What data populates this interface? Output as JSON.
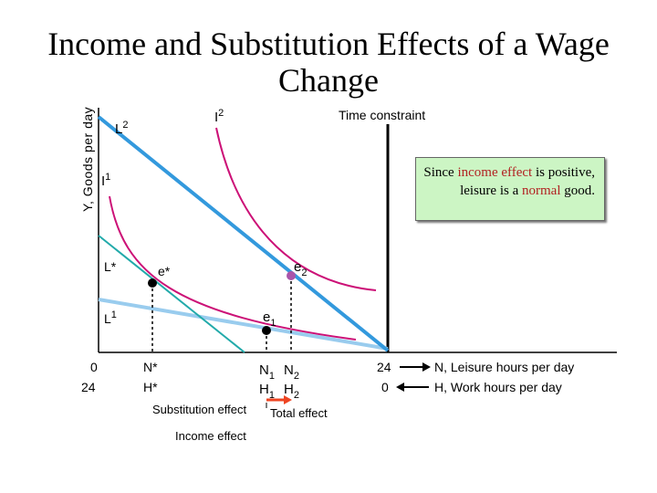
{
  "title": "Income and Substitution Effects of a Wage Change",
  "y_axis_label": "Y, Goods per day",
  "labels": {
    "time_constraint": "Time constraint",
    "L2": "L",
    "L2_sub": "2",
    "I2": "I",
    "I2_sup": "2",
    "I1": "I",
    "I1_sup": "1",
    "Lstar": "L*",
    "L1": "L",
    "L1_sup": "1",
    "estar": "e*",
    "e2": "e",
    "e2_sub": "2",
    "e1": "e",
    "e1_sub": "1"
  },
  "x_axis": {
    "row1": {
      "zero": "0",
      "Nstar": "N*",
      "N1": "N",
      "N1_sub": "1",
      "N2": "N",
      "N2_sub": "2",
      "end": "24",
      "desc": "N, Leisure hours per day"
    },
    "row2": {
      "zero": "24",
      "Hstar": "H*",
      "H1": "H",
      "H1_sub": "1",
      "H2": "H",
      "H2_sub": "2",
      "end": "0",
      "desc": "H, Work hours per day"
    }
  },
  "effects": {
    "substitution": "Substitution effect",
    "total": "Total effect",
    "income": "Income effect"
  },
  "note": {
    "part1": "Since ",
    "hl1": "income effect",
    "part2": " is positive, leisure is a ",
    "hl2": "normal",
    "part3": " good."
  },
  "colors": {
    "budget_line": "#3399dd",
    "indifference_curve": "#cc1177",
    "point": "#000000",
    "point_e2": "#aa55aa",
    "compensated_line": "#22aaaa",
    "light_line": "#99ccee",
    "total_effect_arrow": "#ee4422",
    "note_bg": "#ccf5c4",
    "note_highlight": "#b22222"
  }
}
